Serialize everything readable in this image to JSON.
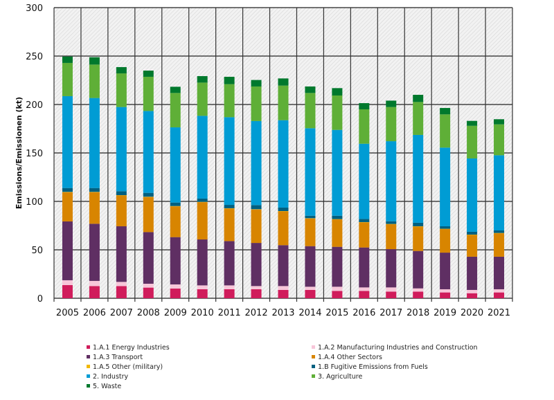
{
  "chart_data": {
    "type": "bar",
    "stacked": true,
    "ylabel": "Emissions/Emissionen (kt)",
    "xlabel": "",
    "ylim": [
      0,
      300
    ],
    "yticks": [
      0,
      50,
      100,
      150,
      200,
      250,
      300
    ],
    "grid": true,
    "legend_position": "bottom",
    "categories": [
      "2005",
      "2006",
      "2007",
      "2008",
      "2009",
      "2010",
      "2011",
      "2012",
      "2013",
      "2014",
      "2015",
      "2016",
      "2017",
      "2018",
      "2019",
      "2020",
      "2021"
    ],
    "series": [
      {
        "name": "1.A.1 Energy Industries",
        "color": "#d01c5b",
        "values": [
          13.6,
          12.6,
          12.6,
          11.0,
          10.0,
          9.3,
          9.3,
          9.3,
          8.6,
          8.6,
          7.6,
          7.6,
          6.9,
          6.9,
          6.0,
          5.2,
          6.0
        ]
      },
      {
        "name": "1.A.2 Manufacturing Industries and Construction",
        "color": "#f7c6d9",
        "values": [
          5.0,
          5.3,
          4.3,
          4.0,
          4.3,
          4.0,
          4.0,
          3.3,
          4.0,
          3.3,
          4.3,
          3.6,
          4.3,
          3.3,
          3.3,
          3.4,
          3.3
        ]
      },
      {
        "name": "1.A.3 Transport",
        "color": "#5f2f63",
        "values": [
          60.7,
          59.0,
          57.4,
          53.3,
          48.8,
          47.4,
          45.7,
          44.5,
          42.2,
          41.9,
          41.2,
          41.2,
          39.5,
          38.6,
          37.8,
          34.3,
          33.6
        ]
      },
      {
        "name": "1.A.4 Other Sectors",
        "color": "#d88500",
        "values": [
          30.2,
          32.6,
          31.8,
          36.2,
          31.8,
          38.5,
          33.6,
          34.5,
          34.9,
          28.5,
          28.3,
          25.9,
          25.7,
          25.2,
          24.3,
          22.5,
          24.2
        ]
      },
      {
        "name": "1.A.5 Other (military)",
        "color": "#f2b800",
        "values": [
          0.3,
          0.3,
          0.3,
          0.3,
          0.3,
          0.3,
          0.3,
          0.3,
          0.3,
          0.3,
          0.3,
          0.3,
          0.3,
          0.3,
          0.3,
          0.3,
          0.3
        ]
      },
      {
        "name": "1.B Fugitive Emissions from Fuels",
        "color": "#006080",
        "values": [
          4.0,
          4.0,
          4.1,
          4.0,
          3.6,
          3.4,
          3.5,
          4.3,
          3.6,
          2.6,
          3.5,
          3.3,
          2.8,
          3.6,
          2.6,
          2.9,
          2.6
        ]
      },
      {
        "name": "2. Industry",
        "color": "#009cd4",
        "values": [
          94.8,
          92.9,
          86.9,
          84.5,
          77.6,
          85.4,
          90.5,
          86.7,
          90.2,
          90.3,
          88.6,
          77.6,
          82.6,
          90.7,
          81.2,
          75.7,
          77.6
        ]
      },
      {
        "name": "3. Agriculture",
        "color": "#5faf37",
        "values": [
          34.3,
          34.5,
          34.7,
          35.3,
          35.5,
          34.3,
          34.1,
          35.7,
          35.7,
          36.4,
          35.5,
          35.5,
          35.3,
          34.0,
          34.3,
          33.7,
          31.9
        ]
      },
      {
        "name": "5. Waste",
        "color": "#00792d",
        "values": [
          6.6,
          7.6,
          6.5,
          6.4,
          6.4,
          6.7,
          7.6,
          6.7,
          7.4,
          6.7,
          7.6,
          6.4,
          6.6,
          7.4,
          6.6,
          5.1,
          5.3
        ]
      }
    ]
  }
}
